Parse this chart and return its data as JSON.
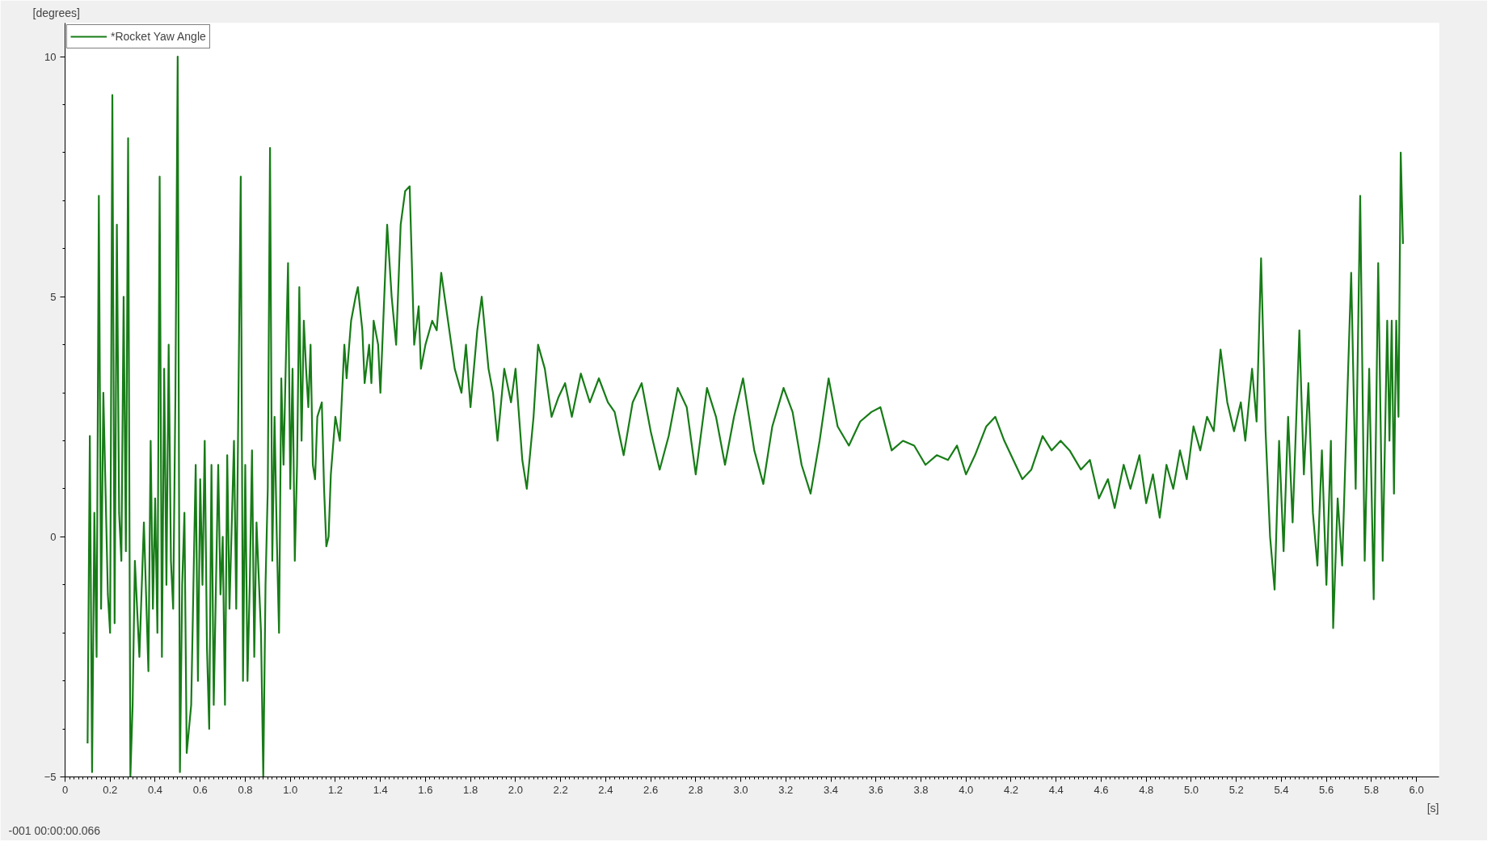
{
  "chart_data": {
    "type": "line",
    "xlabel": "[s]",
    "ylabel": "[degrees]",
    "legend": "top left",
    "grid": false,
    "marker": "none",
    "line_style": "solid",
    "annotations": [
      "-001 00:00:00.066"
    ],
    "xlim": [
      0,
      6.1
    ],
    "ylim": [
      -5,
      10.7
    ],
    "xticks": [
      {
        "value": 0,
        "label": "0"
      },
      0.2,
      0.4,
      0.6,
      0.8,
      {
        "value": 1,
        "label": "1.0"
      },
      1.2,
      1.4,
      1.6,
      1.8,
      {
        "value": 2,
        "label": "2.0"
      },
      2.2,
      2.4,
      2.6,
      2.8,
      {
        "value": 3,
        "label": "3.0"
      },
      3.2,
      3.4,
      3.6,
      3.8,
      {
        "value": 4,
        "label": "4.0"
      },
      4.2,
      4.4,
      4.6,
      4.8,
      {
        "value": 5,
        "label": "5.0"
      },
      5.2,
      5.4,
      5.6,
      5.8,
      {
        "value": 6,
        "label": "6.0"
      }
    ],
    "yticks": [
      -5,
      0,
      5,
      10
    ],
    "series": [
      {
        "name": "*Rocket Yaw Angle",
        "color": "#177c17",
        "x": [
          0.1,
          0.11,
          0.12,
          0.13,
          0.14,
          0.15,
          0.16,
          0.17,
          0.19,
          0.2,
          0.21,
          0.22,
          0.23,
          0.24,
          0.25,
          0.26,
          0.27,
          0.28,
          0.29,
          0.3,
          0.31,
          0.33,
          0.35,
          0.37,
          0.38,
          0.39,
          0.4,
          0.41,
          0.42,
          0.43,
          0.44,
          0.45,
          0.46,
          0.47,
          0.48,
          0.49,
          0.5,
          0.51,
          0.52,
          0.53,
          0.54,
          0.56,
          0.57,
          0.58,
          0.59,
          0.6,
          0.61,
          0.62,
          0.63,
          0.64,
          0.65,
          0.66,
          0.68,
          0.69,
          0.7,
          0.71,
          0.72,
          0.73,
          0.75,
          0.76,
          0.78,
          0.79,
          0.8,
          0.81,
          0.82,
          0.83,
          0.84,
          0.85,
          0.87,
          0.88,
          0.89,
          0.9,
          0.91,
          0.92,
          0.93,
          0.94,
          0.95,
          0.96,
          0.97,
          0.99,
          1.0,
          1.01,
          1.02,
          1.03,
          1.04,
          1.05,
          1.06,
          1.07,
          1.08,
          1.09,
          1.1,
          1.11,
          1.12,
          1.14,
          1.15,
          1.16,
          1.17,
          1.18,
          1.2,
          1.22,
          1.24,
          1.25,
          1.27,
          1.29,
          1.3,
          1.32,
          1.33,
          1.35,
          1.36,
          1.37,
          1.39,
          1.4,
          1.43,
          1.45,
          1.47,
          1.49,
          1.51,
          1.53,
          1.55,
          1.57,
          1.58,
          1.6,
          1.63,
          1.65,
          1.67,
          1.7,
          1.73,
          1.76,
          1.78,
          1.8,
          1.83,
          1.85,
          1.88,
          1.9,
          1.92,
          1.95,
          1.98,
          2.0,
          2.03,
          2.05,
          2.08,
          2.1,
          2.13,
          2.16,
          2.19,
          2.22,
          2.25,
          2.29,
          2.33,
          2.37,
          2.41,
          2.44,
          2.48,
          2.52,
          2.56,
          2.6,
          2.64,
          2.68,
          2.72,
          2.76,
          2.8,
          2.85,
          2.89,
          2.93,
          2.97,
          3.01,
          3.06,
          3.1,
          3.14,
          3.19,
          3.23,
          3.27,
          3.31,
          3.35,
          3.39,
          3.43,
          3.48,
          3.53,
          3.58,
          3.62,
          3.67,
          3.72,
          3.77,
          3.82,
          3.87,
          3.92,
          3.96,
          4.0,
          4.04,
          4.09,
          4.13,
          4.17,
          4.21,
          4.25,
          4.29,
          4.34,
          4.38,
          4.42,
          4.46,
          4.51,
          4.55,
          4.59,
          4.63,
          4.66,
          4.7,
          4.73,
          4.77,
          4.8,
          4.83,
          4.86,
          4.89,
          4.92,
          4.95,
          4.98,
          5.01,
          5.04,
          5.07,
          5.1,
          5.13,
          5.16,
          5.19,
          5.22,
          5.24,
          5.27,
          5.29,
          5.31,
          5.33,
          5.35,
          5.37,
          5.39,
          5.41,
          5.43,
          5.45,
          5.48,
          5.5,
          5.52,
          5.54,
          5.56,
          5.58,
          5.6,
          5.62,
          5.63,
          5.65,
          5.67,
          5.69,
          5.71,
          5.73,
          5.75,
          5.77,
          5.79,
          5.81,
          5.83,
          5.85,
          5.87,
          5.88,
          5.89,
          5.9,
          5.91,
          5.92,
          5.93,
          5.94
        ],
        "values": [
          -4.3,
          2.1,
          -4.9,
          0.5,
          -2.5,
          7.1,
          -1.5,
          3.0,
          -1.2,
          -2.0,
          9.2,
          -1.8,
          6.5,
          0.5,
          -0.5,
          5.0,
          -0.3,
          8.3,
          -5.0,
          -3.5,
          -0.5,
          -2.5,
          0.3,
          -2.8,
          2.0,
          -1.5,
          0.8,
          -2.0,
          7.5,
          -2.5,
          3.5,
          -1.0,
          4.0,
          -0.5,
          -1.5,
          3.0,
          10.0,
          -4.9,
          -1.0,
          0.5,
          -4.5,
          -3.5,
          -1.0,
          1.5,
          -3.0,
          1.2,
          -1.0,
          2.0,
          -2.3,
          -4.0,
          1.5,
          -3.5,
          1.5,
          -1.2,
          0.0,
          -3.5,
          1.7,
          -1.5,
          2.0,
          -1.5,
          7.5,
          -3.0,
          1.5,
          -3.0,
          -1.0,
          1.8,
          -2.5,
          0.3,
          -2.0,
          -5.0,
          -1.0,
          1.0,
          8.1,
          -0.5,
          2.5,
          0.0,
          -2.0,
          3.3,
          1.5,
          5.7,
          1.0,
          3.5,
          -0.5,
          1.5,
          5.2,
          2.0,
          4.5,
          3.5,
          2.7,
          4.0,
          1.5,
          1.2,
          2.5,
          2.8,
          1.0,
          -0.2,
          0.0,
          1.3,
          2.5,
          2.0,
          4.0,
          3.3,
          4.5,
          5.0,
          5.2,
          4.3,
          3.2,
          4.0,
          3.2,
          4.5,
          4.0,
          3.0,
          6.5,
          5.0,
          4.0,
          6.5,
          7.2,
          7.3,
          4.0,
          4.8,
          3.5,
          4.0,
          4.5,
          4.3,
          5.5,
          4.5,
          3.5,
          3.0,
          4.0,
          2.7,
          4.3,
          5.0,
          3.5,
          3.0,
          2.0,
          3.5,
          2.8,
          3.5,
          1.6,
          1.0,
          2.5,
          4.0,
          3.5,
          2.5,
          2.9,
          3.2,
          2.5,
          3.4,
          2.8,
          3.3,
          2.8,
          2.6,
          1.7,
          2.8,
          3.2,
          2.2,
          1.4,
          2.1,
          3.1,
          2.7,
          1.3,
          3.1,
          2.5,
          1.5,
          2.5,
          3.3,
          1.8,
          1.1,
          2.3,
          3.1,
          2.6,
          1.5,
          0.9,
          2.0,
          3.3,
          2.3,
          1.9,
          2.4,
          2.6,
          2.7,
          1.8,
          2.0,
          1.9,
          1.5,
          1.7,
          1.6,
          1.9,
          1.3,
          1.7,
          2.3,
          2.5,
          2.0,
          1.6,
          1.2,
          1.4,
          2.1,
          1.8,
          2.0,
          1.8,
          1.4,
          1.6,
          0.8,
          1.2,
          0.6,
          1.5,
          1.0,
          1.7,
          0.7,
          1.3,
          0.4,
          1.5,
          1.0,
          1.8,
          1.2,
          2.3,
          1.8,
          2.5,
          2.2,
          3.9,
          2.8,
          2.2,
          2.8,
          2.0,
          3.5,
          2.4,
          5.8,
          2.2,
          0.0,
          -1.1,
          2.0,
          -0.3,
          2.5,
          0.3,
          4.3,
          1.3,
          3.2,
          0.5,
          -0.6,
          1.8,
          -1.0,
          2.0,
          -1.9,
          0.8,
          -0.6,
          2.5,
          5.5,
          1.0,
          7.1,
          -0.5,
          3.5,
          -1.3,
          5.7,
          -0.5,
          4.5,
          2.0,
          4.5,
          0.9,
          4.5,
          2.5,
          8.0,
          6.1
        ]
      }
    ]
  }
}
